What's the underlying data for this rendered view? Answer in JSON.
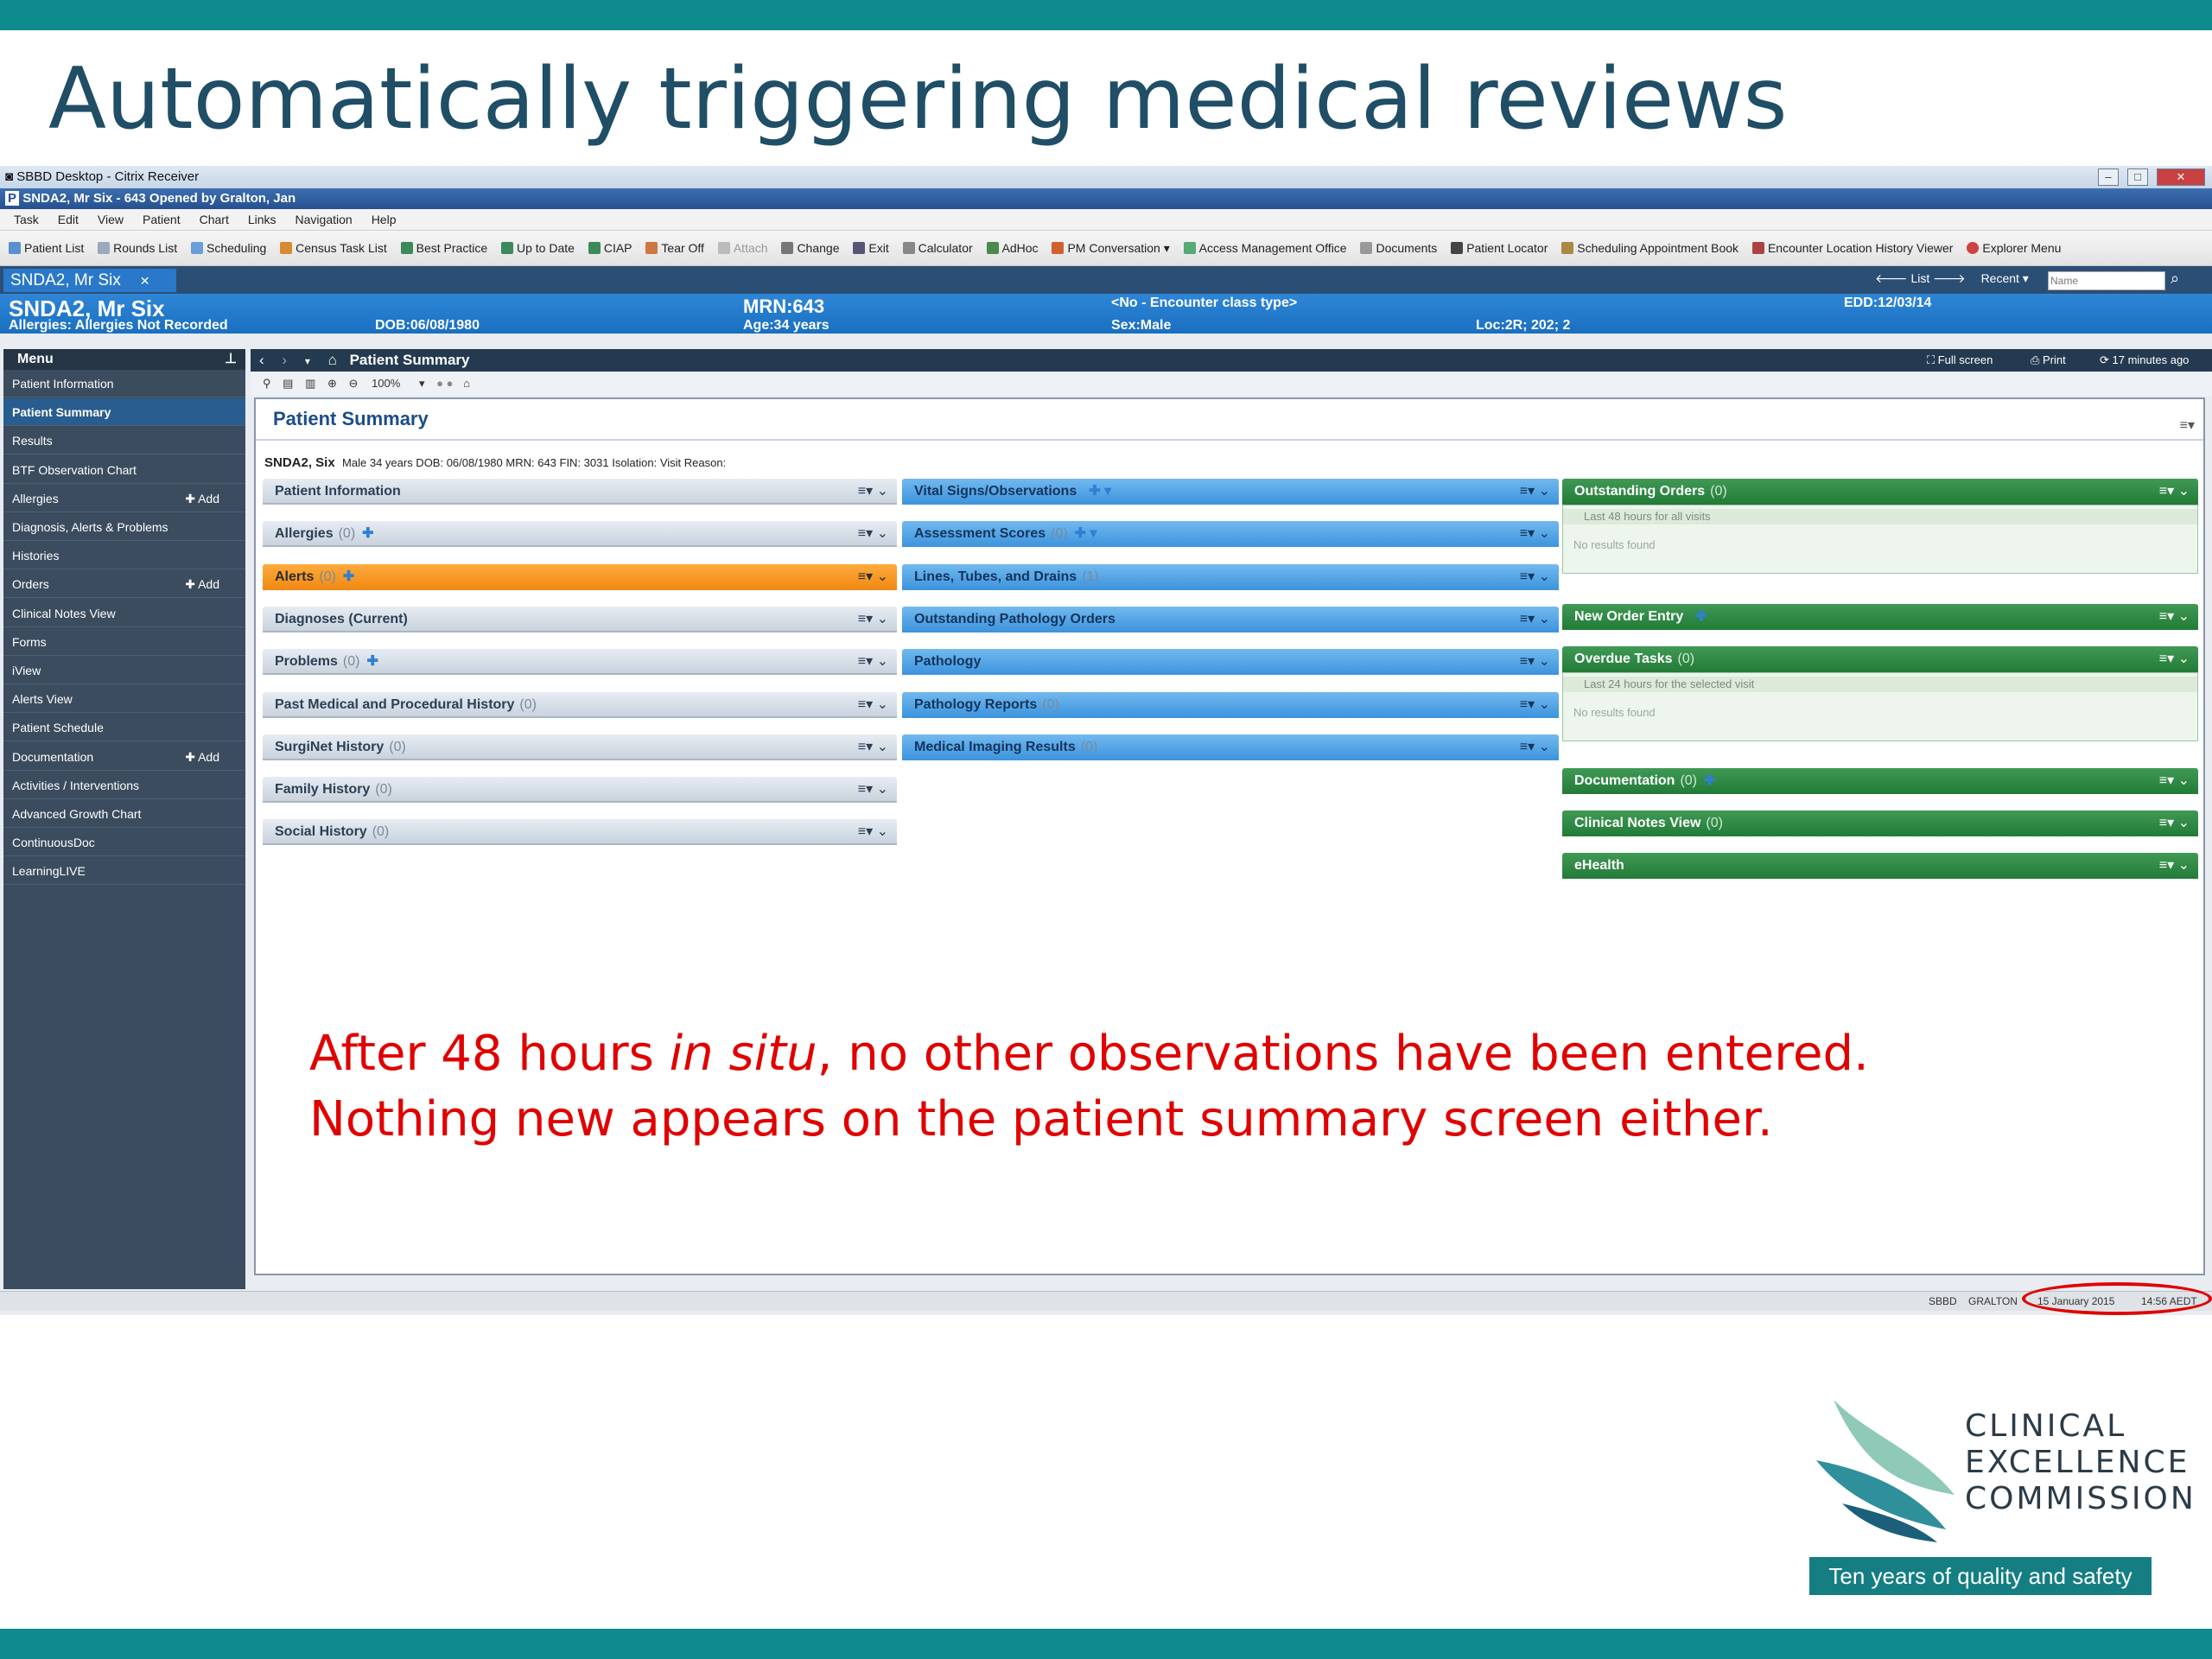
{
  "slide": {
    "title": "Automatically triggering medical reviews",
    "note_part1": "After 48 hours ",
    "note_italic": "in situ",
    "note_part2": ", no other observations have been entered.",
    "note_line2": "Nothing new appears on the patient summary screen either.",
    "logo": {
      "line1": "CLINICAL",
      "line2": "EXCELLENCE",
      "line3": "COMMISSION",
      "tagline": "Ten years of quality and safety"
    }
  },
  "window": {
    "citrix_title": "SBBD Desktop - Citrix Receiver",
    "app_title": "SNDA2, Mr Six - 643 Opened by Gralton, Jan",
    "menu": [
      "Task",
      "Edit",
      "View",
      "Patient",
      "Chart",
      "Links",
      "Navigation",
      "Help"
    ],
    "toolbar": [
      "Patient List",
      "Rounds List",
      "Scheduling",
      "Census Task List",
      "Best Practice",
      "Up to Date",
      "CIAP",
      "Tear Off",
      "Attach",
      "Change",
      "Exit",
      "Calculator",
      "AdHoc",
      "PM Conversation",
      "Access Management Office",
      "Documents",
      "Patient Locator",
      "Scheduling Appointment Book",
      "Encounter Location History Viewer",
      "Explorer Menu"
    ],
    "patient_tab": "SNDA2, Mr Six",
    "tab_right": {
      "list": "List",
      "recent": "Recent",
      "name_placeholder": "Name"
    }
  },
  "banner": {
    "name": "SNDA2, Mr Six",
    "allergies": "Allergies: Allergies Not Recorded",
    "dob": "DOB:06/08/1980",
    "mrn": "MRN:643",
    "age": "Age:34 years",
    "encounter": "<No - Encounter class type>",
    "sex": "Sex:Male",
    "loc": "Loc:2R; 202; 2",
    "edd": "EDD:12/03/14"
  },
  "sidebar": {
    "header": "Menu",
    "items": [
      {
        "label": "Patient Information",
        "add": ""
      },
      {
        "label": "Patient Summary",
        "add": ""
      },
      {
        "label": "Results",
        "add": ""
      },
      {
        "label": "BTF Observation Chart",
        "add": ""
      },
      {
        "label": "Allergies",
        "add": "Add"
      },
      {
        "label": "Diagnosis, Alerts & Problems",
        "add": ""
      },
      {
        "label": "Histories",
        "add": ""
      },
      {
        "label": "Orders",
        "add": "Add"
      },
      {
        "label": "Clinical Notes View",
        "add": ""
      },
      {
        "label": "Forms",
        "add": ""
      },
      {
        "label": "iView",
        "add": ""
      },
      {
        "label": "Alerts View",
        "add": ""
      },
      {
        "label": "Patient Schedule",
        "add": ""
      },
      {
        "label": "Documentation",
        "add": "Add"
      },
      {
        "label": "Activities / Interventions",
        "add": ""
      },
      {
        "label": "Advanced Growth Chart",
        "add": ""
      },
      {
        "label": "ContinuousDoc",
        "add": ""
      },
      {
        "label": "LearningLIVE",
        "add": ""
      }
    ]
  },
  "nav": {
    "title": "Patient Summary",
    "full_screen": "Full screen",
    "print": "Print",
    "updated": "17 minutes ago",
    "zoom": "100%"
  },
  "summary": {
    "title": "Patient Summary",
    "patient_name": "SNDA2, Six",
    "patient_meta": "Male   34 years   DOB: 06/08/1980   MRN: 643   FIN: 3031   Isolation:   Visit Reason:",
    "col1": [
      {
        "label": "Patient Information",
        "count": ""
      },
      {
        "label": "Allergies",
        "count": "(0)"
      },
      {
        "label": "Alerts",
        "count": "(0)"
      },
      {
        "label": "Diagnoses (Current)",
        "count": ""
      },
      {
        "label": "Problems",
        "count": "(0)"
      },
      {
        "label": "Past Medical and Procedural History",
        "count": "(0)"
      },
      {
        "label": "SurgiNet History",
        "count": "(0)"
      },
      {
        "label": "Family History",
        "count": "(0)"
      },
      {
        "label": "Social History",
        "count": "(0)"
      }
    ],
    "col2": [
      {
        "label": "Vital Signs/Observations",
        "count": ""
      },
      {
        "label": "Assessment Scores",
        "count": "(0)"
      },
      {
        "label": "Lines, Tubes, and Drains",
        "count": "(1)"
      },
      {
        "label": "Outstanding Pathology Orders",
        "count": ""
      },
      {
        "label": "Pathology",
        "count": ""
      },
      {
        "label": "Pathology Reports",
        "count": "(0)"
      },
      {
        "label": "Medical Imaging Results",
        "count": "(0)"
      }
    ],
    "col3": [
      {
        "label": "Outstanding Orders",
        "count": "(0)",
        "sub": "Last 48 hours for all visits",
        "empty": "No results found"
      },
      {
        "label": "New Order Entry",
        "count": ""
      },
      {
        "label": "Overdue Tasks",
        "count": "(0)",
        "sub": "Last 24 hours for the selected visit",
        "empty": "No results found"
      },
      {
        "label": "Documentation",
        "count": "(0)"
      },
      {
        "label": "Clinical Notes View",
        "count": "(0)"
      },
      {
        "label": "eHealth",
        "count": ""
      }
    ]
  },
  "status": {
    "system": "SBBD",
    "user": "GRALTON",
    "date": "15 January 2015",
    "time": "14:56 AEDT"
  },
  "colors": {
    "teal": "#0e8b8c",
    "alert_orange": "#f08812",
    "component_blue": "#3c93dc",
    "component_green": "#237a38",
    "highlight_red": "#e00000"
  }
}
